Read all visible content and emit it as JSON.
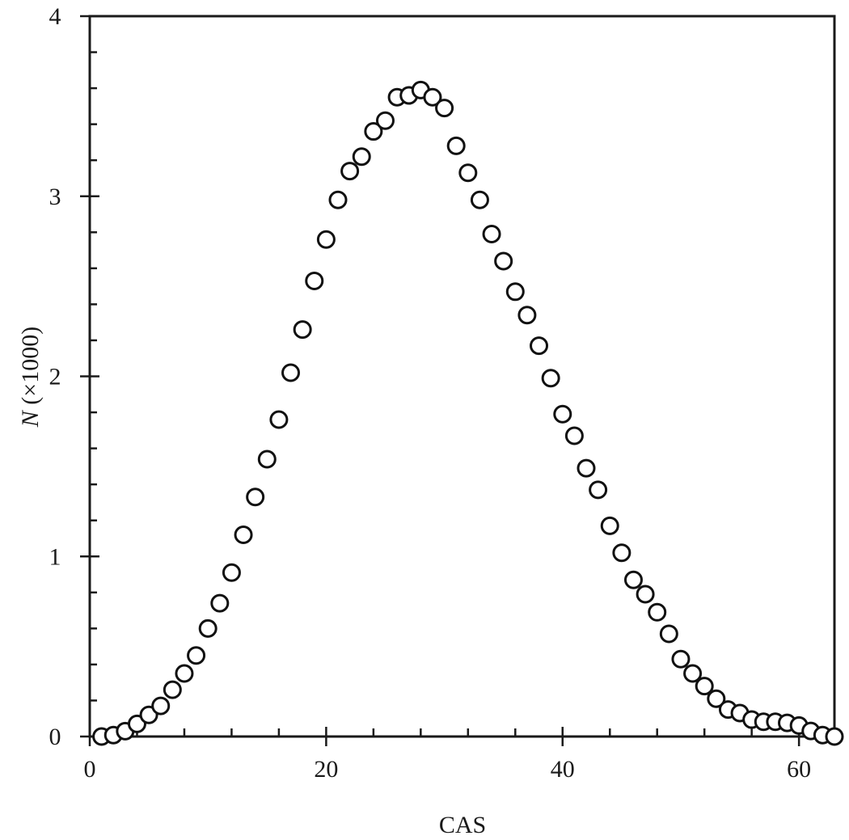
{
  "chart_data": {
    "type": "scatter",
    "title": "",
    "xlabel": "CAS",
    "ylabel": "N (×1000)",
    "ylabel_parts": {
      "italic": "N",
      "rest": " (×1000)"
    },
    "xlim": [
      0,
      63
    ],
    "ylim": [
      0,
      4
    ],
    "x_major_ticks": [
      0,
      20,
      40,
      60
    ],
    "x_minor_step": 4,
    "y_major_ticks": [
      0,
      1,
      2,
      3,
      4
    ],
    "y_minor_step": 0.2,
    "grid": false,
    "legend": null,
    "marker": "open-circle",
    "series": [
      {
        "name": "N",
        "x": [
          1,
          2,
          3,
          4,
          5,
          6,
          7,
          8,
          9,
          10,
          11,
          12,
          13,
          14,
          15,
          16,
          17,
          18,
          19,
          20,
          21,
          22,
          23,
          24,
          25,
          26,
          27,
          28,
          29,
          30,
          31,
          32,
          33,
          34,
          35,
          36,
          37,
          38,
          39,
          40,
          41,
          42,
          43,
          44,
          45,
          46,
          47,
          48,
          49,
          50,
          51,
          52,
          53,
          54,
          55,
          56,
          57,
          58,
          59,
          60,
          61,
          62,
          63
        ],
        "y": [
          0.0,
          0.008,
          0.03,
          0.07,
          0.12,
          0.17,
          0.26,
          0.35,
          0.45,
          0.6,
          0.74,
          0.91,
          1.12,
          1.33,
          1.54,
          1.76,
          2.02,
          2.26,
          2.53,
          2.76,
          2.98,
          3.14,
          3.22,
          3.36,
          3.42,
          3.55,
          3.56,
          3.59,
          3.55,
          3.49,
          3.28,
          3.13,
          2.98,
          2.79,
          2.64,
          2.47,
          2.34,
          2.17,
          1.99,
          1.79,
          1.67,
          1.49,
          1.37,
          1.17,
          1.02,
          0.87,
          0.79,
          0.69,
          0.57,
          0.43,
          0.35,
          0.28,
          0.21,
          0.15,
          0.13,
          0.094,
          0.082,
          0.082,
          0.076,
          0.061,
          0.031,
          0.008,
          0.0
        ]
      }
    ]
  },
  "colors": {
    "axis": "#1a1a1a",
    "marker_stroke": "#111111",
    "marker_fill": "#ffffff",
    "background": "#ffffff"
  }
}
